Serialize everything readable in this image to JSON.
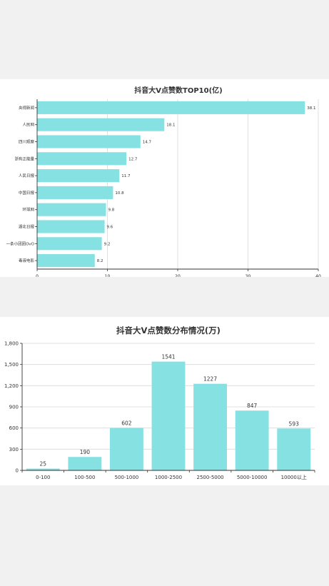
{
  "colors": {
    "bar": "#86e1e3",
    "axis": "#333333",
    "grid": "#d8d8d8",
    "background": "#f1f1f1",
    "panel": "#ffffff"
  },
  "chart_data": [
    {
      "type": "bar",
      "orientation": "horizontal",
      "title": "抖音大V点赞数TOP10(亿)",
      "categories": [
        "央视新闻",
        "人民网",
        "四川观察",
        "浙有正能量",
        "人民日报",
        "中国日报",
        "环球网",
        "湖北日报",
        "一条小团团OvO",
        "毒液电影"
      ],
      "values": [
        38.1,
        18.1,
        14.7,
        12.7,
        11.7,
        10.8,
        9.8,
        9.6,
        9.2,
        8.2
      ],
      "value_labels": [
        "38.1",
        "18.1",
        "14.7",
        "12.7",
        "11.7",
        "10.8",
        "9.8",
        "9.6",
        "9.2",
        "8.2"
      ],
      "xlim": [
        0,
        40
      ],
      "xticks": [
        "0",
        "10",
        "20",
        "30",
        "40"
      ],
      "grid": true
    },
    {
      "type": "bar",
      "title": "抖音大V点赞数分布情况(万)",
      "categories": [
        "0-100",
        "100-500",
        "500-1000",
        "1000-2500",
        "2500-5000",
        "5000-10000",
        "10000以上"
      ],
      "values": [
        25,
        190,
        602,
        1541,
        1227,
        847,
        593
      ],
      "value_labels": [
        "25",
        "190",
        "602",
        "1541",
        "1227",
        "847",
        "593"
      ],
      "ylim": [
        0,
        1800
      ],
      "yticks": [
        "0",
        "300",
        "600",
        "900",
        "1,200",
        "1,500",
        "1,800"
      ],
      "grid": true
    }
  ]
}
